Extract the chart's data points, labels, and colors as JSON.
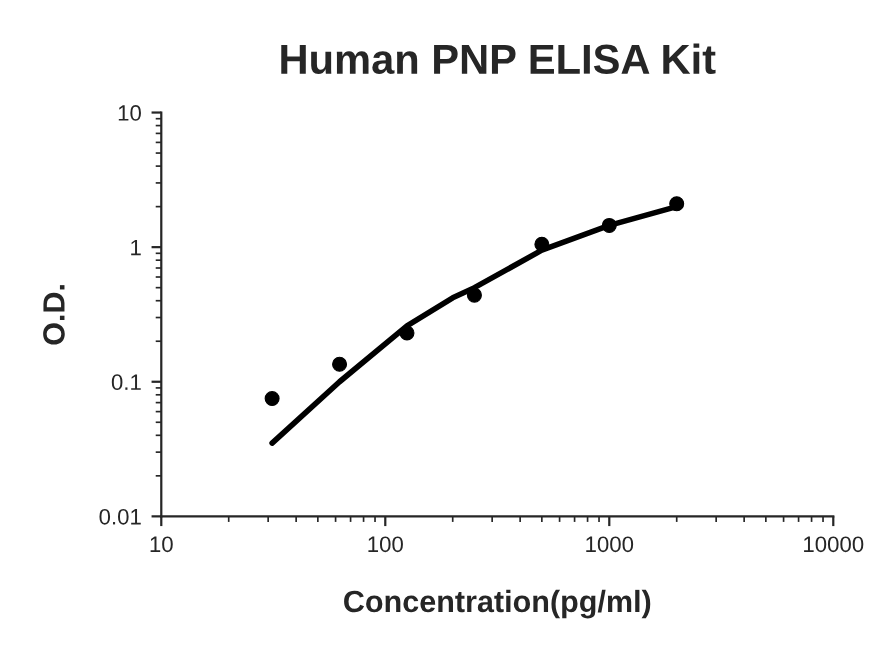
{
  "chart_data": {
    "type": "scatter",
    "title": "Human PNP ELISA Kit",
    "xlabel": "Concentration(pg/ml)",
    "ylabel": "O.D.",
    "log": "xy",
    "grid": false,
    "legend": false,
    "xlim": [
      10,
      10000
    ],
    "xticks": [
      10,
      100,
      1000,
      10000
    ],
    "ylim": [
      0.01,
      10
    ],
    "yticks": [
      0.01,
      0.1,
      1,
      10
    ],
    "series": [
      {
        "color": "#000000",
        "marker": "circle",
        "x": [
          31.25,
          62.5,
          125,
          250,
          500,
          1000,
          2000
        ],
        "values": [
          0.075,
          0.135,
          0.23,
          0.44,
          1.05,
          1.45,
          2.1
        ]
      },
      {
        "type": "line",
        "color": "#000000",
        "marker": "none",
        "line_style": "solid",
        "x": [
          31.25,
          62.5,
          125,
          200,
          250,
          500,
          1000,
          2000
        ],
        "values": [
          0.035,
          0.1,
          0.26,
          0.42,
          0.5,
          0.95,
          1.45,
          2.0
        ]
      }
    ]
  }
}
